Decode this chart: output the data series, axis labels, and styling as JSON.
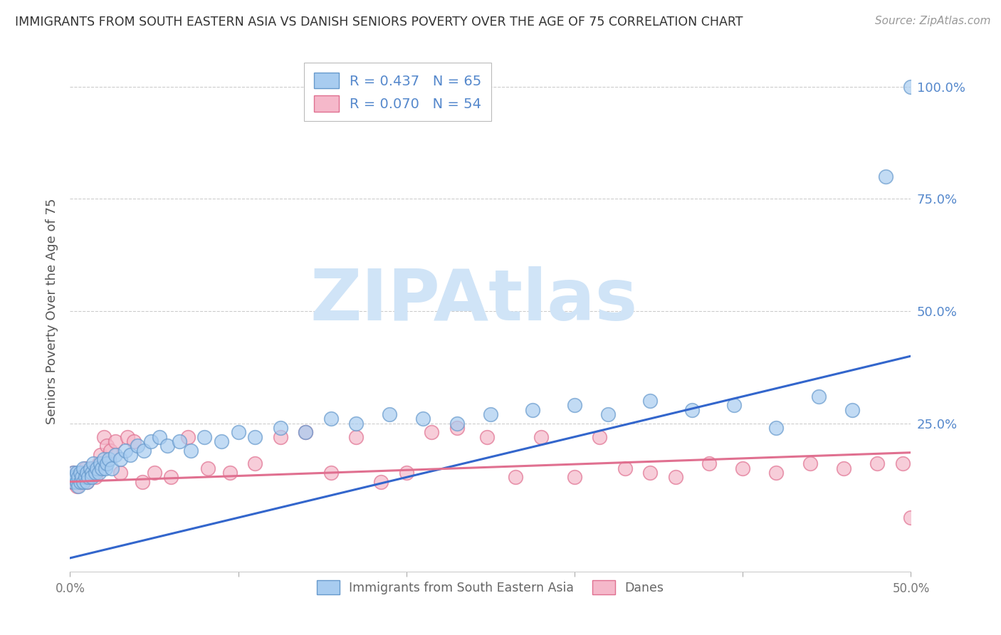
{
  "title": "IMMIGRANTS FROM SOUTH EASTERN ASIA VS DANISH SENIORS POVERTY OVER THE AGE OF 75 CORRELATION CHART",
  "source": "Source: ZipAtlas.com",
  "ylabel": "Seniors Poverty Over the Age of 75",
  "xlabel": "",
  "xlim": [
    0.0,
    0.5
  ],
  "ylim": [
    -0.08,
    1.08
  ],
  "xticks": [
    0.0,
    0.1,
    0.2,
    0.3,
    0.4,
    0.5
  ],
  "xtick_labels": [
    "0.0%",
    "",
    "",
    "",
    "",
    "50.0%"
  ],
  "yticks_right": [
    0.25,
    0.5,
    0.75,
    1.0
  ],
  "ytick_labels_right": [
    "25.0%",
    "50.0%",
    "75.0%",
    "100.0%"
  ],
  "series1_label": "Immigrants from South Eastern Asia",
  "series2_label": "Danes",
  "series1_R": 0.437,
  "series1_N": 65,
  "series2_R": 0.07,
  "series2_N": 54,
  "series1_color": "#A8CCF0",
  "series2_color": "#F5B8CA",
  "series1_edge_color": "#6699CC",
  "series2_edge_color": "#E07090",
  "line1_color": "#3366CC",
  "line2_color": "#E07090",
  "watermark_text": "ZIPAtlas",
  "watermark_color": "#D0E4F7",
  "background_color": "#FFFFFF",
  "grid_color": "#CCCCCC",
  "title_color": "#333333",
  "source_color": "#999999",
  "axis_label_color": "#555555",
  "tick_label_color_right": "#5588CC",
  "legend_text_color": "#5588CC",
  "series1_x": [
    0.001,
    0.002,
    0.002,
    0.003,
    0.004,
    0.004,
    0.005,
    0.005,
    0.006,
    0.006,
    0.007,
    0.008,
    0.008,
    0.009,
    0.01,
    0.01,
    0.011,
    0.012,
    0.013,
    0.013,
    0.014,
    0.015,
    0.016,
    0.017,
    0.018,
    0.019,
    0.02,
    0.021,
    0.022,
    0.023,
    0.025,
    0.027,
    0.03,
    0.033,
    0.036,
    0.04,
    0.044,
    0.048,
    0.053,
    0.058,
    0.065,
    0.072,
    0.08,
    0.09,
    0.1,
    0.11,
    0.125,
    0.14,
    0.155,
    0.17,
    0.19,
    0.21,
    0.23,
    0.25,
    0.275,
    0.3,
    0.32,
    0.345,
    0.37,
    0.395,
    0.42,
    0.445,
    0.465,
    0.485,
    0.5
  ],
  "series1_y": [
    0.13,
    0.12,
    0.14,
    0.13,
    0.12,
    0.14,
    0.11,
    0.13,
    0.12,
    0.14,
    0.13,
    0.12,
    0.15,
    0.13,
    0.14,
    0.12,
    0.13,
    0.15,
    0.14,
    0.13,
    0.16,
    0.14,
    0.15,
    0.14,
    0.16,
    0.15,
    0.17,
    0.15,
    0.16,
    0.17,
    0.15,
    0.18,
    0.17,
    0.19,
    0.18,
    0.2,
    0.19,
    0.21,
    0.22,
    0.2,
    0.21,
    0.19,
    0.22,
    0.21,
    0.23,
    0.22,
    0.24,
    0.23,
    0.26,
    0.25,
    0.27,
    0.26,
    0.25,
    0.27,
    0.28,
    0.29,
    0.27,
    0.3,
    0.28,
    0.29,
    0.24,
    0.31,
    0.28,
    0.8,
    1.0
  ],
  "series2_x": [
    0.001,
    0.002,
    0.004,
    0.005,
    0.006,
    0.007,
    0.008,
    0.009,
    0.01,
    0.011,
    0.012,
    0.013,
    0.014,
    0.015,
    0.017,
    0.018,
    0.02,
    0.022,
    0.024,
    0.027,
    0.03,
    0.034,
    0.038,
    0.043,
    0.05,
    0.06,
    0.07,
    0.082,
    0.095,
    0.11,
    0.125,
    0.14,
    0.155,
    0.17,
    0.185,
    0.2,
    0.215,
    0.23,
    0.248,
    0.265,
    0.28,
    0.3,
    0.315,
    0.33,
    0.345,
    0.36,
    0.38,
    0.4,
    0.42,
    0.44,
    0.46,
    0.48,
    0.495,
    0.5
  ],
  "series2_y": [
    0.12,
    0.14,
    0.11,
    0.13,
    0.12,
    0.14,
    0.13,
    0.15,
    0.12,
    0.14,
    0.13,
    0.15,
    0.14,
    0.13,
    0.16,
    0.18,
    0.22,
    0.2,
    0.19,
    0.21,
    0.14,
    0.22,
    0.21,
    0.12,
    0.14,
    0.13,
    0.22,
    0.15,
    0.14,
    0.16,
    0.22,
    0.23,
    0.14,
    0.22,
    0.12,
    0.14,
    0.23,
    0.24,
    0.22,
    0.13,
    0.22,
    0.13,
    0.22,
    0.15,
    0.14,
    0.13,
    0.16,
    0.15,
    0.14,
    0.16,
    0.15,
    0.16,
    0.16,
    0.04
  ],
  "line1_x": [
    0.0,
    0.5
  ],
  "line1_y": [
    -0.05,
    0.4
  ],
  "line2_x": [
    0.0,
    0.5
  ],
  "line2_y": [
    0.12,
    0.185
  ]
}
